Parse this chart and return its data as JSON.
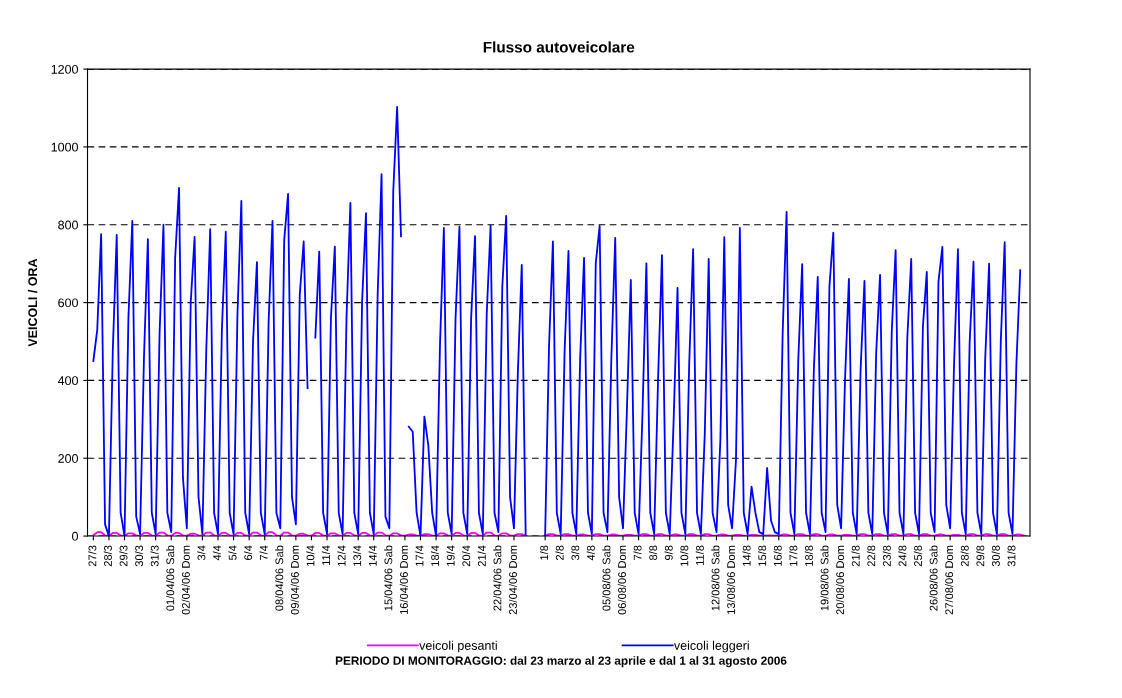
{
  "chart_data": {
    "type": "line",
    "title": "Flusso autoveicolare",
    "ylabel": "VEICOLI / ORA",
    "ylim": [
      0,
      1200
    ],
    "yticks": [
      0,
      200,
      400,
      600,
      800,
      1000,
      1200
    ],
    "categories": [
      "27/3",
      null,
      null,
      null,
      "28/3",
      null,
      null,
      null,
      "29/3",
      null,
      null,
      null,
      "30/3",
      null,
      null,
      null,
      "31/3",
      null,
      null,
      null,
      "01/04/06 Sab",
      null,
      null,
      null,
      "02/04/06 Dom",
      null,
      null,
      null,
      "3/4",
      null,
      null,
      null,
      "4/4",
      null,
      null,
      null,
      "5/4",
      null,
      null,
      null,
      "6/4",
      null,
      null,
      null,
      "7/4",
      null,
      null,
      null,
      "08/04/06 Sab",
      null,
      null,
      null,
      "09/04/06 Dom",
      null,
      null,
      null,
      "10/4",
      null,
      null,
      null,
      "11/4",
      null,
      null,
      null,
      "12/4",
      null,
      null,
      null,
      "13/4",
      null,
      null,
      null,
      "14/4",
      null,
      null,
      null,
      "15/04/06 Sab",
      null,
      null,
      null,
      "16/04/06 Dom",
      null,
      null,
      null,
      "17/4",
      null,
      null,
      null,
      "18/4",
      null,
      null,
      null,
      "19/4",
      null,
      null,
      null,
      "20/4",
      null,
      null,
      null,
      "21/4",
      null,
      null,
      null,
      "22/04/06 Sab",
      null,
      null,
      null,
      "23/04/06 Dom",
      null,
      null,
      null,
      null,
      null,
      null,
      null,
      "1/8",
      null,
      null,
      null,
      "2/8",
      null,
      null,
      null,
      "3/8",
      null,
      null,
      null,
      "4/8",
      null,
      null,
      null,
      "05/08/06 Sab",
      null,
      null,
      null,
      "06/08/06 Dom",
      null,
      null,
      null,
      "7/8",
      null,
      null,
      null,
      "8/8",
      null,
      null,
      null,
      "9/8",
      null,
      null,
      null,
      "10/8",
      null,
      null,
      null,
      "11/8",
      null,
      null,
      null,
      "12/08/06 Sab",
      null,
      null,
      null,
      "13/08/06 Dom",
      null,
      null,
      null,
      "14/8",
      null,
      null,
      null,
      "15/8",
      null,
      null,
      null,
      "16/8",
      null,
      null,
      null,
      "17/8",
      null,
      null,
      null,
      "18/8",
      null,
      null,
      null,
      "19/08/06 Sab",
      null,
      null,
      null,
      "20/08/06 Dom",
      null,
      null,
      null,
      "21/8",
      null,
      null,
      null,
      "22/8",
      null,
      null,
      null,
      "23/8",
      null,
      null,
      null,
      "24/8",
      null,
      null,
      null,
      "25/8",
      null,
      null,
      null,
      "26/08/06 Sab",
      null,
      null,
      null,
      "27/08/06 Dom",
      null,
      null,
      null,
      "28/8",
      null,
      null,
      null,
      "29/8",
      null,
      null,
      null,
      "30/8",
      null,
      null,
      null,
      "31/8",
      null,
      null,
      null
    ],
    "grid": "y",
    "legend": "bottom",
    "annotations": [
      "PERIODO DI MONITORAGGIO: dal 23 marzo al 23 aprile e dal 1 al 31 agosto 2006"
    ],
    "series": [
      {
        "name": "veicoli pesanti",
        "color": "#ff00ff",
        "values": [
          2,
          10,
          10,
          2,
          1,
          8,
          8,
          2,
          1,
          7,
          7,
          2,
          1,
          8,
          8,
          2,
          1,
          9,
          9,
          2,
          1,
          8,
          8,
          2,
          1,
          6,
          6,
          2,
          1,
          9,
          9,
          2,
          1,
          8,
          8,
          2,
          1,
          8,
          8,
          2,
          1,
          9,
          9,
          2,
          1,
          10,
          10,
          2,
          1,
          9,
          9,
          2,
          1,
          6,
          6,
          2,
          1,
          8,
          8,
          2,
          1,
          7,
          7,
          2,
          1,
          8,
          8,
          2,
          1,
          8,
          8,
          2,
          1,
          9,
          9,
          2,
          1,
          7,
          7,
          2,
          1,
          4,
          4,
          2,
          1,
          5,
          5,
          2,
          1,
          7,
          7,
          2,
          1,
          8,
          8,
          2,
          1,
          8,
          8,
          2,
          1,
          9,
          9,
          2,
          1,
          7,
          7,
          2,
          1,
          5,
          5,
          1,
          null,
          null,
          null,
          null,
          1,
          5,
          5,
          1,
          1,
          5,
          5,
          1,
          1,
          4,
          4,
          1,
          1,
          5,
          5,
          1,
          1,
          4,
          4,
          1,
          1,
          3,
          3,
          1,
          1,
          5,
          5,
          1,
          1,
          5,
          5,
          1,
          1,
          4,
          4,
          1,
          1,
          5,
          5,
          1,
          1,
          5,
          5,
          1,
          1,
          4,
          4,
          1,
          1,
          3,
          3,
          1,
          1,
          3,
          3,
          1,
          1,
          2,
          2,
          1,
          1,
          4,
          4,
          1,
          1,
          5,
          5,
          1,
          1,
          5,
          5,
          1,
          1,
          4,
          4,
          1,
          1,
          3,
          3,
          1,
          1,
          5,
          5,
          1,
          1,
          5,
          5,
          1,
          1,
          5,
          5,
          1,
          1,
          5,
          5,
          1,
          1,
          5,
          5,
          1,
          1,
          4,
          4,
          1,
          1,
          3,
          3,
          1,
          1,
          5,
          5,
          1,
          1,
          5,
          5,
          1,
          1,
          5,
          5,
          1,
          1,
          4,
          4,
          1
        ]
      },
      {
        "name": "veicoli leggeri",
        "color": "#0000ff",
        "values": [
          450,
          530,
          776,
          30,
          0,
          480,
          774,
          60,
          0,
          560,
          810,
          50,
          5,
          460,
          763,
          60,
          5,
          520,
          800,
          60,
          10,
          715,
          895,
          150,
          20,
          600,
          769,
          100,
          5,
          480,
          789,
          60,
          5,
          530,
          782,
          60,
          5,
          570,
          861,
          60,
          5,
          500,
          704,
          60,
          5,
          550,
          810,
          60,
          20,
          760,
          879,
          100,
          30,
          620,
          757,
          380,
          null,
          510,
          731,
          60,
          5,
          560,
          744,
          60,
          5,
          560,
          856,
          60,
          5,
          600,
          830,
          60,
          5,
          620,
          930,
          50,
          20,
          885,
          1103,
          770,
          null,
          281,
          268,
          60,
          0,
          307,
          234,
          60,
          0,
          490,
          792,
          60,
          5,
          560,
          795,
          60,
          5,
          560,
          771,
          60,
          5,
          570,
          798,
          60,
          10,
          640,
          823,
          100,
          20,
          420,
          697,
          5,
          null,
          null,
          null,
          null,
          0,
          487,
          757,
          60,
          5,
          474,
          733,
          60,
          5,
          458,
          715,
          60,
          5,
          701,
          797,
          60,
          10,
          455,
          766,
          100,
          20,
          324,
          658,
          60,
          5,
          315,
          701,
          60,
          5,
          403,
          722,
          60,
          5,
          298,
          638,
          60,
          5,
          445,
          737,
          60,
          5,
          265,
          712,
          60,
          10,
          247,
          768,
          80,
          20,
          195,
          792,
          60,
          5,
          127,
          60,
          10,
          5,
          175,
          40,
          10,
          5,
          525,
          833,
          60,
          5,
          452,
          699,
          60,
          5,
          427,
          666,
          60,
          10,
          641,
          780,
          80,
          20,
          401,
          661,
          60,
          5,
          427,
          656,
          60,
          5,
          470,
          671,
          60,
          5,
          525,
          735,
          60,
          5,
          509,
          712,
          60,
          5,
          538,
          679,
          60,
          10,
          654,
          743,
          80,
          20,
          442,
          737,
          60,
          5,
          496,
          705,
          60,
          5,
          455,
          700,
          60,
          5,
          500,
          755,
          60,
          5,
          440,
          683,
          null
        ]
      }
    ]
  }
}
